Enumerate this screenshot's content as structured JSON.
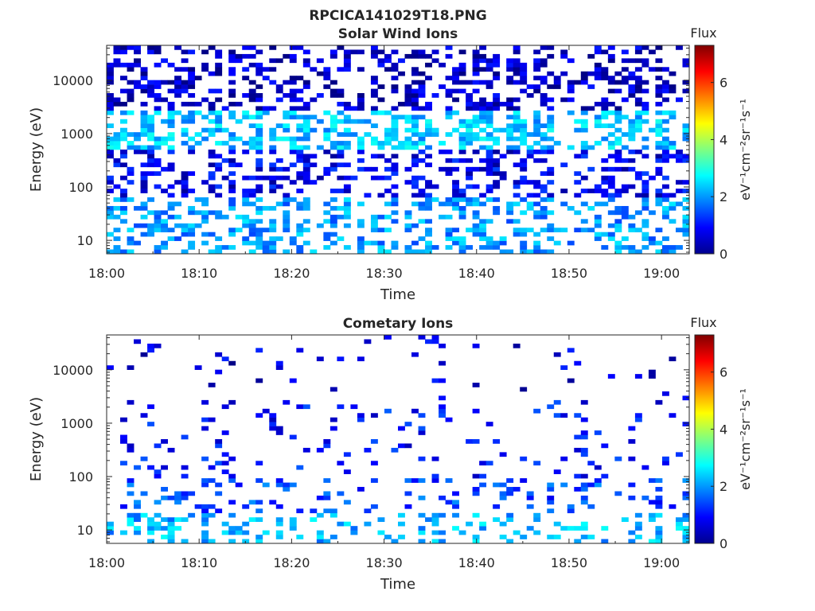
{
  "figure_title": "RPCICA141029T18.PNG",
  "colorbar": {
    "title": "Flux",
    "label": "eV⁻¹cm⁻²sr⁻¹s⁻¹",
    "ticks": [
      "0",
      "2",
      "4",
      "6"
    ],
    "range": [
      0,
      7.3
    ],
    "colormap": "jet"
  },
  "chart_data": [
    {
      "type": "heatmap",
      "title": "Solar Wind Ions",
      "xlabel": "Time",
      "ylabel": "Energy (eV)",
      "x_ticks": [
        "18:00",
        "18:10",
        "18:20",
        "18:30",
        "18:40",
        "18:50",
        "19:00"
      ],
      "x_range_minutes": [
        0,
        63
      ],
      "y_scale": "log",
      "y_ticks": [
        "10",
        "100",
        "1000",
        "10000"
      ],
      "y_range_eV": [
        5.6,
        45000
      ],
      "bands": [
        {
          "energy_range_eV": [
            6,
            60
          ],
          "typical_flux": 2.0
        },
        {
          "energy_range_eV": [
            60,
            500
          ],
          "typical_flux": 0.8
        },
        {
          "energy_range_eV": [
            500,
            2500
          ],
          "typical_flux": 2.3
        },
        {
          "energy_range_eV": [
            2500,
            45000
          ],
          "typical_flux": 0.5
        }
      ]
    },
    {
      "type": "heatmap",
      "title": "Cometary Ions",
      "xlabel": "Time",
      "ylabel": "Energy (eV)",
      "x_ticks": [
        "18:00",
        "18:10",
        "18:20",
        "18:30",
        "18:40",
        "18:50",
        "19:00"
      ],
      "x_range_minutes": [
        0,
        63
      ],
      "y_scale": "log",
      "y_ticks": [
        "10",
        "100",
        "1000",
        "10000"
      ],
      "y_range_eV": [
        5.6,
        45000
      ],
      "bands": [
        {
          "energy_range_eV": [
            6,
            20
          ],
          "typical_flux": 2.2
        },
        {
          "energy_range_eV": [
            20,
            100
          ],
          "typical_flux": 1.4
        },
        {
          "energy_range_eV": [
            100,
            2500
          ],
          "typical_flux": 1.0
        },
        {
          "energy_range_eV": [
            2500,
            45000
          ],
          "typical_flux": 0.6
        }
      ]
    }
  ]
}
